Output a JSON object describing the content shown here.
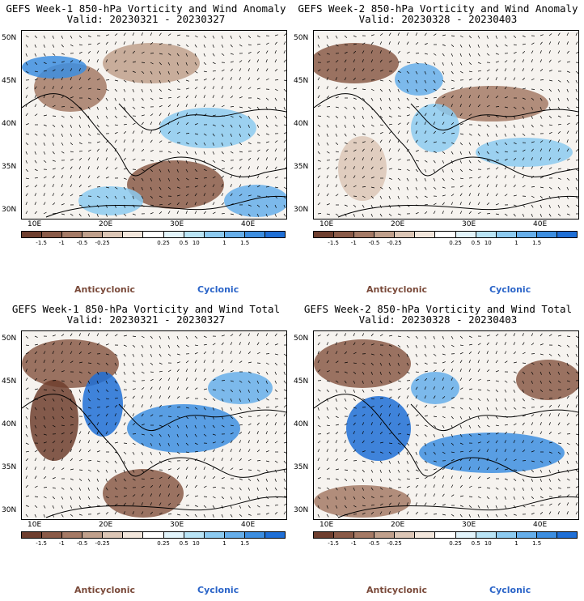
{
  "panels": [
    {
      "title": "GEFS Week-1 850-hPa Vorticity and Wind Anomaly",
      "valid": "Valid: 20230321 - 20230327"
    },
    {
      "title": "GEFS Week-2 850-hPa Vorticity and Wind Anomaly",
      "valid": "Valid: 20230328 - 20230403"
    },
    {
      "title": "GEFS Week-1 850-hPa Vorticity and Wind Total",
      "valid": "Valid: 20230321 - 20230327"
    },
    {
      "title": "GEFS Week-2 850-hPa Vorticity and Wind Total",
      "valid": "Valid: 20230328 - 20230403"
    }
  ],
  "lat_labels": [
    "50N",
    "45N",
    "40N",
    "35N",
    "30N"
  ],
  "lon_labels": [
    "10E",
    "20E",
    "30E",
    "40E"
  ],
  "colorbar": {
    "colors": [
      "#6e3e2e",
      "#8a5a48",
      "#a57a66",
      "#c0a08c",
      "#dcc6b6",
      "#f2e6dc",
      "#ffffff",
      "#e2f4fb",
      "#b9e4f6",
      "#8ccaf0",
      "#66aeea",
      "#3d8ee0",
      "#1f6fd6"
    ],
    "labels": [
      "-1.5",
      "-1",
      "-0.5",
      "-0.25",
      "0.25",
      "0.5",
      "1",
      "1.5"
    ],
    "unit": "10"
  },
  "legend": {
    "anticyclonic": "Anticyclonic",
    "cyclonic": "Cyclonic"
  }
}
